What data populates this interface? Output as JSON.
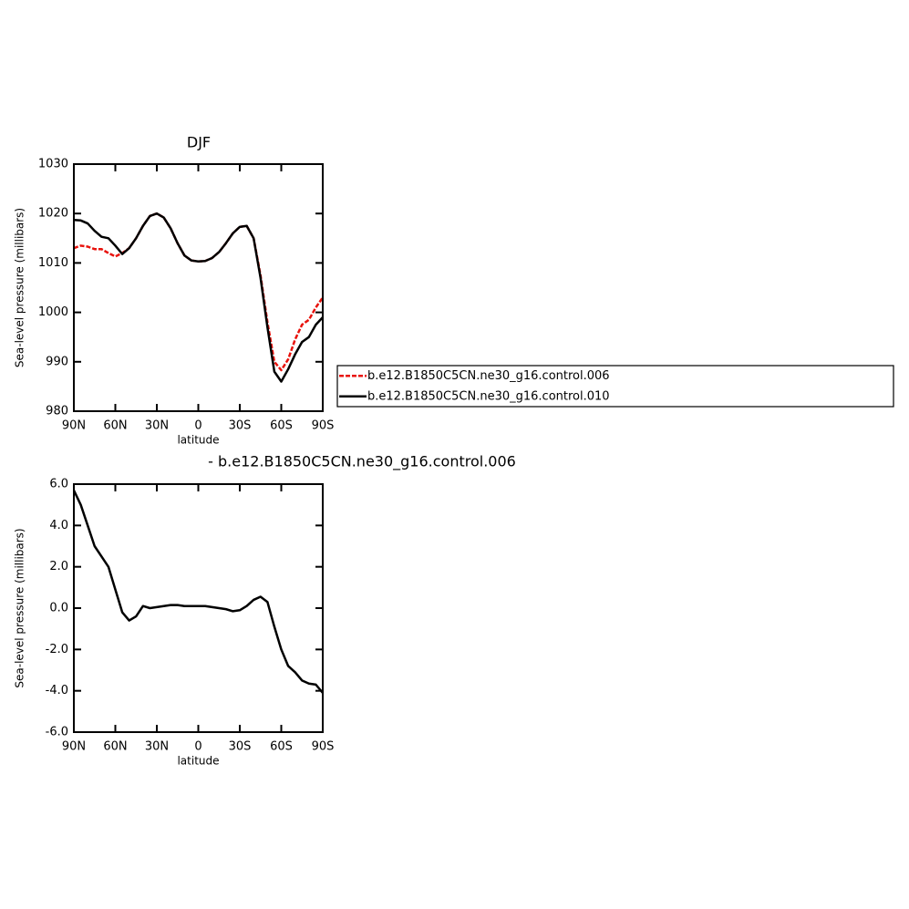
{
  "chart_data": [
    {
      "type": "line",
      "title": "DJF",
      "xlabel": "latitude",
      "ylabel": "Sea-level pressure (millibars)",
      "x": [
        90,
        85,
        80,
        75,
        70,
        65,
        60,
        55,
        50,
        45,
        40,
        35,
        30,
        25,
        20,
        15,
        10,
        5,
        0,
        -5,
        -10,
        -15,
        -20,
        -25,
        -30,
        -35,
        -40,
        -45,
        -50,
        -55,
        -60,
        -65,
        -70,
        -75,
        -80,
        -85,
        -90
      ],
      "series": [
        {
          "name": "b.e12.B1850C5CN.ne30_g16.control.006",
          "color": "#e8120c",
          "style": "dashed",
          "values": [
            1013,
            1013.5,
            1013.3,
            1012.8,
            1012.8,
            1012,
            1011.3,
            1012,
            1013,
            1015,
            1017.5,
            1019.5,
            1020,
            1019.2,
            1017,
            1014,
            1011.5,
            1010.5,
            1010.3,
            1010.4,
            1011,
            1012.2,
            1014,
            1016,
            1017.3,
            1017.5,
            1015,
            1007.5,
            998,
            990,
            988.3,
            990.5,
            994.5,
            997.5,
            998.5,
            1001,
            1003
          ]
        },
        {
          "name": "b.e12.B1850C5CN.ne30_g16.control.010",
          "color": "#000000",
          "style": "solid",
          "values": [
            1018.7,
            1018.6,
            1018,
            1016.5,
            1015.3,
            1015,
            1013.5,
            1011.8,
            1013,
            1015,
            1017.5,
            1019.5,
            1020,
            1019.2,
            1017,
            1014,
            1011.5,
            1010.5,
            1010.3,
            1010.4,
            1011,
            1012.2,
            1014,
            1016,
            1017.3,
            1017.5,
            1015,
            1007,
            997,
            988,
            986,
            988.5,
            991.5,
            994,
            995,
            997.5,
            999
          ]
        }
      ],
      "xlim": [
        90,
        -90
      ],
      "xticks": [
        {
          "value": 90,
          "label": "90N"
        },
        {
          "value": 60,
          "label": "60N"
        },
        {
          "value": 30,
          "label": "30N"
        },
        0,
        {
          "value": -30,
          "label": "30S"
        },
        {
          "value": -60,
          "label": "60S"
        },
        {
          "value": -90,
          "label": "90S"
        }
      ],
      "ylim": [
        980,
        1030
      ],
      "yticks": [
        980,
        990,
        1000,
        1010,
        1020,
        1030
      ],
      "legend": "right"
    },
    {
      "type": "line",
      "title": "- b.e12.B1850C5CN.ne30_g16.control.006",
      "xlabel": "latitude",
      "ylabel": "Sea-level pressure (millibars)",
      "x": [
        90,
        85,
        80,
        75,
        70,
        65,
        60,
        55,
        50,
        45,
        40,
        35,
        30,
        25,
        20,
        15,
        10,
        5,
        0,
        -5,
        -10,
        -15,
        -20,
        -25,
        -30,
        -35,
        -40,
        -45,
        -50,
        -55,
        -60,
        -65,
        -70,
        -75,
        -80,
        -85,
        -90
      ],
      "values": [
        5.7,
        5.0,
        4.0,
        3.0,
        2.5,
        2.0,
        0.9,
        -0.2,
        -0.6,
        -0.4,
        0.1,
        0.0,
        0.05,
        0.1,
        0.15,
        0.15,
        0.1,
        0.1,
        0.1,
        0.1,
        0.05,
        0.0,
        -0.05,
        -0.15,
        -0.1,
        0.1,
        0.4,
        0.55,
        0.3,
        -0.9,
        -2.0,
        -2.8,
        -3.1,
        -3.5,
        -3.65,
        -3.7,
        -4.1
      ],
      "color": "#000000",
      "xlim": [
        90,
        -90
      ],
      "xticks": [
        {
          "value": 90,
          "label": "90N"
        },
        {
          "value": 60,
          "label": "60N"
        },
        {
          "value": 30,
          "label": "30N"
        },
        0,
        {
          "value": -30,
          "label": "30S"
        },
        {
          "value": -60,
          "label": "60S"
        },
        {
          "value": -90,
          "label": "90S"
        }
      ],
      "ylim": [
        -6,
        6
      ],
      "yticks": [
        {
          "value": -6,
          "label": "-6.0"
        },
        {
          "value": -4,
          "label": "-4.0"
        },
        {
          "value": -2,
          "label": "-2.0"
        },
        {
          "value": 0,
          "label": "0.0"
        },
        {
          "value": 2,
          "label": "2.0"
        },
        {
          "value": 4,
          "label": "4.0"
        },
        {
          "value": 6,
          "label": "6.0"
        }
      ]
    }
  ]
}
